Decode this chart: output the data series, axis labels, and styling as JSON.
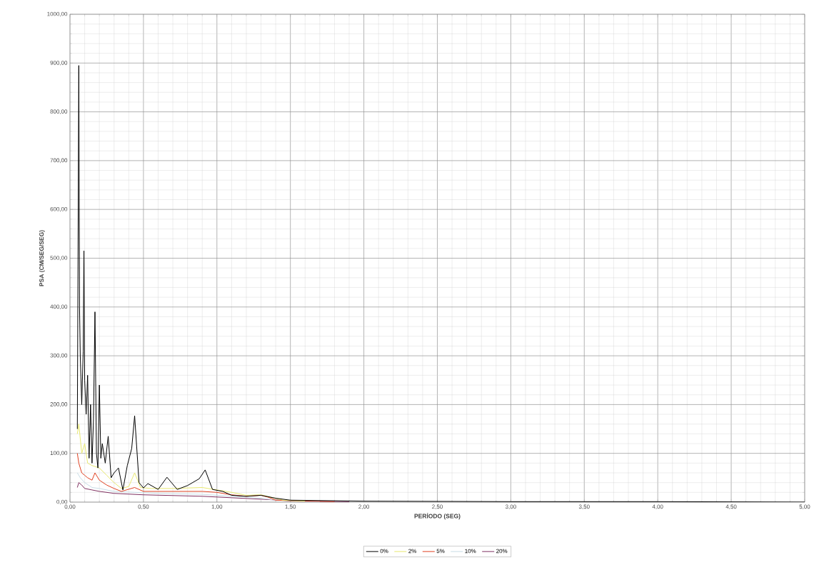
{
  "chart_data": {
    "type": "line",
    "xlabel": "PERÍODO (SEG)",
    "ylabel": "PSA (CM/SEG/SEG)",
    "xlim": [
      0,
      5
    ],
    "ylim": [
      0,
      1000
    ],
    "xticks": [
      {
        "value": 0,
        "label": "0,00"
      },
      {
        "value": 0.5,
        "label": "0,50"
      },
      {
        "value": 1,
        "label": "1,00"
      },
      {
        "value": 1.5,
        "label": "1,50"
      },
      {
        "value": 2,
        "label": "2,00"
      },
      {
        "value": 2.5,
        "label": "2,50"
      },
      {
        "value": 3,
        "label": "3,00"
      },
      {
        "value": 3.5,
        "label": "3,50"
      },
      {
        "value": 4,
        "label": "4,00"
      },
      {
        "value": 4.5,
        "label": "4,50"
      },
      {
        "value": 5,
        "label": "5,00"
      }
    ],
    "yticks": [
      {
        "value": 0,
        "label": "0,00"
      },
      {
        "value": 100,
        "label": "100,00"
      },
      {
        "value": 200,
        "label": "200,00"
      },
      {
        "value": 300,
        "label": "300,00"
      },
      {
        "value": 400,
        "label": "400,00"
      },
      {
        "value": 500,
        "label": "500,00"
      },
      {
        "value": 600,
        "label": "600,00"
      },
      {
        "value": 700,
        "label": "700,00"
      },
      {
        "value": 800,
        "label": "800,00"
      },
      {
        "value": 900,
        "label": "900,00"
      },
      {
        "value": 1000,
        "label": "1000,00"
      }
    ],
    "grid": true,
    "legend": "bottom",
    "marker": "none",
    "line_style": "solid",
    "series": [
      {
        "name": "0%",
        "color": "#000000",
        "x": [
          0.05,
          0.06,
          0.065,
          0.07,
          0.08,
          0.09,
          0.095,
          0.1,
          0.11,
          0.12,
          0.13,
          0.14,
          0.15,
          0.16,
          0.17,
          0.18,
          0.19,
          0.2,
          0.21,
          0.22,
          0.24,
          0.26,
          0.28,
          0.3,
          0.33,
          0.36,
          0.39,
          0.42,
          0.44,
          0.47,
          0.5,
          0.53,
          0.6,
          0.66,
          0.73,
          0.8,
          0.88,
          0.92,
          0.97,
          1.04,
          1.1,
          1.2,
          1.3,
          1.4,
          1.5,
          2.0,
          3.0,
          4.0,
          5.0
        ],
        "values": [
          150,
          895,
          400,
          300,
          200,
          310,
          515,
          250,
          180,
          260,
          90,
          200,
          80,
          170,
          390,
          100,
          70,
          240,
          90,
          120,
          80,
          135,
          50,
          60,
          70,
          25,
          75,
          110,
          177,
          40,
          29,
          38,
          26,
          51,
          26,
          34,
          48,
          66,
          26,
          22,
          14,
          12,
          14,
          8,
          4,
          2,
          1,
          1,
          0
        ]
      },
      {
        "name": "2%",
        "color": "#e8e870",
        "x": [
          0.05,
          0.06,
          0.08,
          0.1,
          0.12,
          0.15,
          0.2,
          0.25,
          0.3,
          0.35,
          0.4,
          0.44,
          0.48,
          0.55,
          0.7,
          0.9,
          1.0,
          1.1,
          1.2,
          1.3,
          1.45,
          1.6
        ],
        "values": [
          140,
          160,
          100,
          120,
          80,
          75,
          70,
          55,
          40,
          28,
          32,
          60,
          30,
          28,
          28,
          30,
          25,
          20,
          14,
          15,
          4,
          2
        ]
      },
      {
        "name": "5%",
        "color": "#e04020",
        "x": [
          0.05,
          0.06,
          0.08,
          0.1,
          0.12,
          0.15,
          0.17,
          0.2,
          0.25,
          0.3,
          0.35,
          0.44,
          0.5,
          0.7,
          0.9,
          1.0,
          1.1,
          1.2,
          1.3,
          1.35,
          1.4,
          1.5,
          1.8
        ],
        "values": [
          100,
          80,
          60,
          55,
          50,
          45,
          60,
          45,
          35,
          28,
          22,
          30,
          22,
          22,
          22,
          20,
          15,
          12,
          14,
          10,
          4,
          3,
          1
        ]
      },
      {
        "name": "10%",
        "color": "#c8dce6",
        "x": [
          0.05,
          0.07,
          0.1,
          0.15,
          0.2,
          0.3,
          0.44,
          0.6,
          0.9,
          1.1,
          1.3,
          1.4,
          1.7
        ],
        "values": [
          60,
          50,
          40,
          30,
          28,
          22,
          20,
          18,
          16,
          12,
          8,
          4,
          1
        ]
      },
      {
        "name": "20%",
        "color": "#803060",
        "x": [
          0.05,
          0.06,
          0.08,
          0.1,
          0.15,
          0.2,
          0.3,
          0.5,
          0.9,
          1.1,
          1.3,
          1.55,
          1.9
        ],
        "values": [
          30,
          40,
          35,
          28,
          25,
          22,
          18,
          15,
          12,
          9,
          6,
          2,
          1
        ]
      }
    ]
  }
}
